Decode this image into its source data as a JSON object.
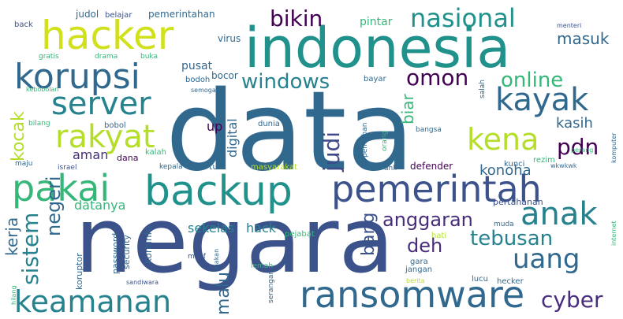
{
  "words": [
    {
      "text": "data",
      "color": "#31688e"
    },
    {
      "text": "negara",
      "color": "#3b528b"
    },
    {
      "text": "indonesia",
      "color": "#21918c"
    },
    {
      "text": "backup",
      "color": "#21918c"
    },
    {
      "text": "pemerintah",
      "color": "#3b528b"
    },
    {
      "text": "hacker",
      "color": "#d0e11c"
    },
    {
      "text": "korupsi",
      "color": "#31688e"
    },
    {
      "text": "server",
      "color": "#26828e"
    },
    {
      "text": "rakyat",
      "color": "#b5de2b"
    },
    {
      "text": "pakai",
      "color": "#35b779"
    },
    {
      "text": "kayak",
      "color": "#31688e"
    },
    {
      "text": "ransomware",
      "color": "#31688e"
    },
    {
      "text": "keamanan",
      "color": "#26828e"
    },
    {
      "text": "anak",
      "color": "#26828e"
    },
    {
      "text": "uang",
      "color": "#31688e"
    },
    {
      "text": "kena",
      "color": "#b5de2b"
    },
    {
      "text": "nasional",
      "color": "#21918c"
    },
    {
      "text": "bikin",
      "color": "#440154"
    },
    {
      "text": "omon",
      "color": "#440154"
    },
    {
      "text": "windows",
      "color": "#26828e"
    },
    {
      "text": "online",
      "color": "#35b779"
    },
    {
      "text": "judi",
      "color": "#3e4989"
    },
    {
      "text": "pdn",
      "color": "#440154"
    },
    {
      "text": "cyber",
      "color": "#472d7b"
    },
    {
      "text": "tebusan",
      "color": "#26828e"
    },
    {
      "text": "sistem",
      "color": "#26828e"
    },
    {
      "text": "anggaran",
      "color": "#472d7b"
    },
    {
      "text": "kocak",
      "color": "#b5de2b"
    },
    {
      "text": "negeri",
      "color": "#31688e"
    },
    {
      "text": "bang",
      "color": "#3b528b"
    },
    {
      "text": "deh",
      "color": "#472d7b"
    },
    {
      "text": "kerja",
      "color": "#31688e"
    },
    {
      "text": "biar",
      "color": "#35b779"
    },
    {
      "text": "digital",
      "color": "#31688e"
    },
    {
      "text": "malu",
      "color": "#31688e"
    },
    {
      "text": "masuk",
      "color": "#31688e"
    },
    {
      "text": "konoha",
      "color": "#31688e"
    },
    {
      "text": "kasih",
      "color": "#31688e"
    },
    {
      "text": "aman",
      "color": "#472d7b"
    },
    {
      "text": "sekelas",
      "color": "#26828e"
    },
    {
      "text": "hack",
      "color": "#26828e"
    },
    {
      "text": "datanya",
      "color": "#35b779"
    },
    {
      "text": "up",
      "color": "#440154"
    },
    {
      "text": "pintar",
      "color": "#35b779"
    },
    {
      "text": "pusat",
      "color": "#31688e"
    },
    {
      "text": "bocor",
      "color": "#31688e"
    },
    {
      "text": "virus",
      "color": "#31688e"
    },
    {
      "text": "judol",
      "color": "#31688e"
    },
    {
      "text": "belajar",
      "color": "#3b528b"
    },
    {
      "text": "pemerintahan",
      "color": "#31688e"
    },
    {
      "text": "back",
      "color": "#3b528b"
    },
    {
      "text": "tua",
      "color": "#31688e"
    },
    {
      "text": "masyarakat",
      "color": "#b5de2b"
    },
    {
      "text": "defender",
      "color": "#440154"
    },
    {
      "text": "kunci",
      "color": "#31688e"
    },
    {
      "text": "rezim",
      "color": "#35b779"
    },
    {
      "text": "wkwkwk",
      "color": "#31688e"
    },
    {
      "text": "pertahanan",
      "color": "#3b528b"
    },
    {
      "text": "kominfo",
      "color": "#31688e"
    },
    {
      "text": "password",
      "color": "#31688e"
    },
    {
      "text": "koruptor",
      "color": "#31688e"
    },
    {
      "text": "security",
      "color": "#31688e"
    },
    {
      "text": "dana",
      "color": "#440154"
    },
    {
      "text": "kalah",
      "color": "#35b779"
    },
    {
      "text": "kepala",
      "color": "#31688e"
    },
    {
      "text": "israel",
      "color": "#3b528b"
    },
    {
      "text": "maju",
      "color": "#31688e"
    },
    {
      "text": "bilang",
      "color": "#35b779"
    },
    {
      "text": "bobol",
      "color": "#31688e"
    },
    {
      "text": "dunia",
      "color": "#31688e"
    },
    {
      "text": "orang",
      "color": "#35b779"
    },
    {
      "text": "pemilihan",
      "color": "#31688e"
    },
    {
      "text": "bangsa",
      "color": "#31688e"
    },
    {
      "text": "salah",
      "color": "#31688e"
    },
    {
      "text": "perang",
      "color": "#35b779"
    },
    {
      "text": "komputer",
      "color": "#31688e"
    },
    {
      "text": "bayar",
      "color": "#31688e"
    },
    {
      "text": "bodoh",
      "color": "#31688e"
    },
    {
      "text": "semoga",
      "color": "#31688e"
    },
    {
      "text": "kebobolan",
      "color": "#35b779"
    },
    {
      "text": "gratis",
      "color": "#35b779"
    },
    {
      "text": "drama",
      "color": "#35b779"
    },
    {
      "text": "buka",
      "color": "#35b779"
    },
    {
      "text": "menteri",
      "color": "#3b528b"
    },
    {
      "text": "ahli",
      "color": "#31688e"
    },
    {
      "text": "internet",
      "color": "#35b779"
    },
    {
      "text": "muda",
      "color": "#31688e"
    },
    {
      "text": "pejabat",
      "color": "#35b779"
    },
    {
      "text": "hati",
      "color": "#b5de2b"
    },
    {
      "text": "makan",
      "color": "#31688e"
    },
    {
      "text": "maaf",
      "color": "#3b528b"
    },
    {
      "text": "lemah",
      "color": "#35b779"
    },
    {
      "text": "gara",
      "color": "#31688e"
    },
    {
      "text": "jangan",
      "color": "#31688e"
    },
    {
      "text": "lucu",
      "color": "#31688e"
    },
    {
      "text": "hecker",
      "color": "#31688e"
    },
    {
      "text": "berita",
      "color": "#b5de2b"
    },
    {
      "text": "serangan",
      "color": "#31688e"
    },
    {
      "text": "sandiwara",
      "color": "#3b528b"
    },
    {
      "text": "hilang",
      "color": "#35b779"
    }
  ]
}
